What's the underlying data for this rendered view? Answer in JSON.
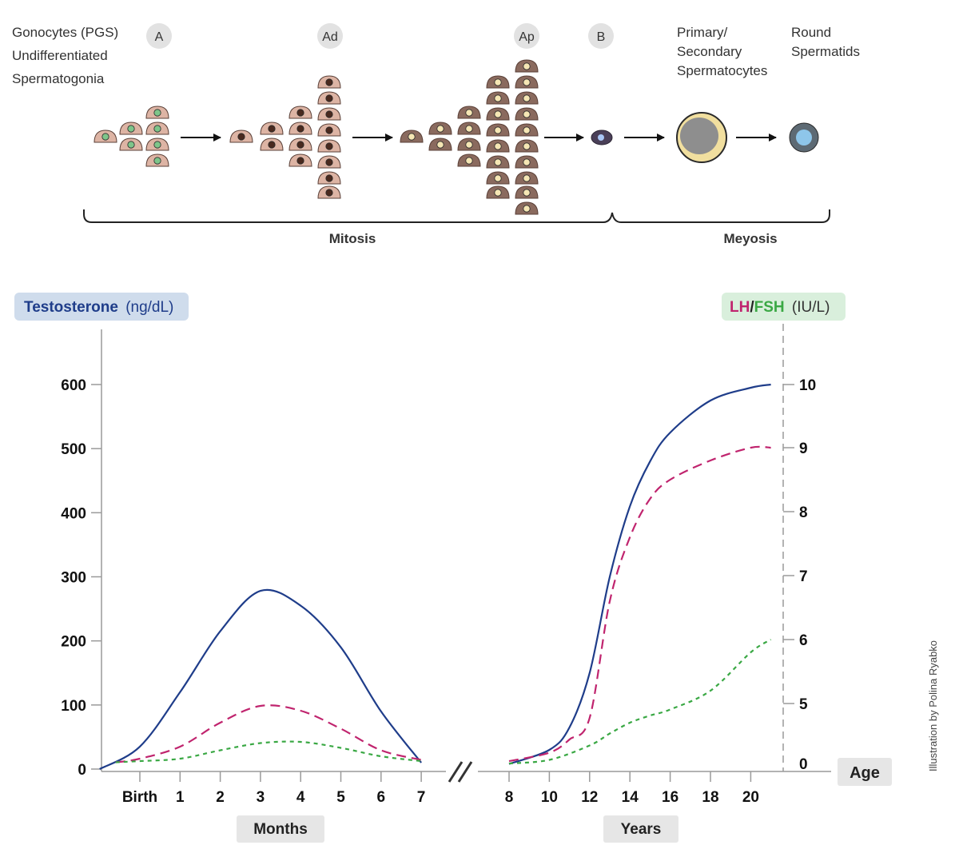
{
  "stages": {
    "gonocytes": [
      "Gonocytes (PGS)",
      "Undifferentiated",
      "Spermatogonia"
    ],
    "a": "A",
    "ad": "Ad",
    "ap": "Ap",
    "b": "B",
    "spermatocytes": [
      "Primary/",
      "Secondary",
      "Spermatocytes"
    ],
    "spermatids": [
      "Round",
      "Spermatids"
    ],
    "mitosis": "Mitosis",
    "meiosis": "Meyosis"
  },
  "chart": {
    "left_axis_name": "Testosterone",
    "left_axis_unit": "(ng/dL)",
    "right_axis_lh": "LH",
    "right_axis_slash": "/",
    "right_axis_fsh": "FSH",
    "right_axis_unit": "(IU/L)",
    "months_label": "Months",
    "years_label": "Years",
    "age_label": "Age",
    "credit": "Illustration by Polina Ryabko"
  },
  "colors": {
    "testosterone": "#1f3d8a",
    "lh": "#c0246e",
    "fsh": "#3aa844",
    "left_pill": "#cfdcec",
    "right_pill": "#d9efdc",
    "grey_pill": "#e6e6e6",
    "cell_light": "#ddb4a4",
    "cell_dark": "#8a6a5e",
    "spermatocyte": "#f1df9f"
  },
  "chart_data": {
    "type": "line",
    "left_ticks": [
      "0",
      "100",
      "200",
      "300",
      "400",
      "500",
      "600"
    ],
    "right_ticks": [
      "0",
      "5",
      "6",
      "7",
      "8",
      "9",
      "10"
    ],
    "months_ticks": [
      "Birth",
      "1",
      "2",
      "3",
      "4",
      "5",
      "6",
      "7"
    ],
    "years_ticks": [
      "8",
      "10",
      "12",
      "14",
      "16",
      "18",
      "20"
    ],
    "series": [
      {
        "name": "Testosterone",
        "axis": "left",
        "style": "solid",
        "months": {
          "x": [
            -1,
            0,
            1,
            2,
            3,
            4,
            5,
            6,
            7
          ],
          "y": [
            0,
            35,
            120,
            215,
            278,
            255,
            190,
            90,
            10
          ]
        },
        "years": {
          "x": [
            8,
            10,
            11,
            12,
            13,
            14,
            15,
            16,
            18,
            20,
            21
          ],
          "y": [
            8,
            30,
            65,
            150,
            300,
            410,
            480,
            525,
            575,
            595,
            600
          ]
        }
      },
      {
        "name": "LH",
        "axis": "right",
        "style": "dashed",
        "months": {
          "x": [
            -0.6,
            0,
            1,
            2,
            3,
            4,
            5,
            6,
            7
          ],
          "y": [
            0.1,
            0.4,
            1.4,
            3.4,
            4.8,
            4.4,
            2.9,
            1.1,
            0.3
          ]
        },
        "years": {
          "x": [
            8,
            10,
            11,
            12,
            13,
            14,
            15,
            16,
            18,
            20,
            21
          ],
          "y": [
            0.2,
            0.9,
            2.0,
            3.8,
            6.6,
            7.6,
            8.2,
            8.5,
            8.8,
            9.0,
            9.0
          ]
        }
      },
      {
        "name": "FSH",
        "axis": "right",
        "style": "dotted",
        "months": {
          "x": [
            -0.6,
            0,
            1,
            2,
            3,
            4,
            5,
            6,
            7
          ],
          "y": [
            0.1,
            0.2,
            0.4,
            1.1,
            1.7,
            1.8,
            1.3,
            0.6,
            0.2
          ]
        },
        "years": {
          "x": [
            8,
            10,
            12,
            13,
            14,
            15,
            16,
            18,
            20,
            21
          ],
          "y": [
            0,
            0.3,
            1.5,
            2.5,
            3.4,
            4.0,
            4.5,
            5.2,
            5.8,
            6.0
          ]
        }
      }
    ]
  }
}
